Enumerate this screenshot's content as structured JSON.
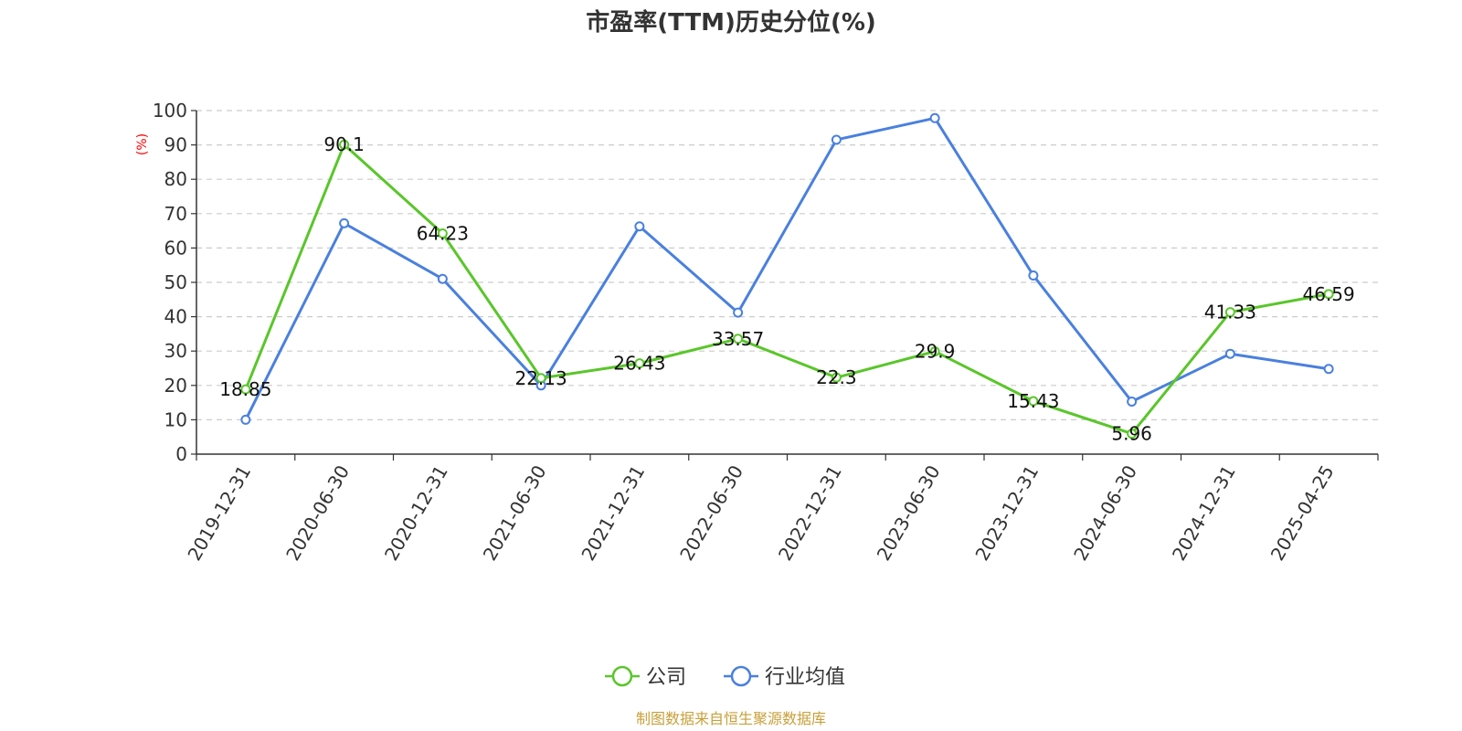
{
  "chart_data": {
    "type": "line",
    "title": "市盈率(TTM)历史分位(%)",
    "ylabel": "(%)",
    "ylim": [
      0,
      100
    ],
    "yticks": [
      0,
      10,
      20,
      30,
      40,
      50,
      60,
      70,
      80,
      90,
      100
    ],
    "grid": true,
    "legend_position": "bottom",
    "categories": [
      "2019-12-31",
      "2020-06-30",
      "2020-12-31",
      "2021-06-30",
      "2021-12-31",
      "2022-06-30",
      "2022-12-31",
      "2023-06-30",
      "2023-12-31",
      "2024-06-30",
      "2024-12-31",
      "2025-04-25"
    ],
    "series": [
      {
        "name": "公司",
        "color": "#5ac62a",
        "values": [
          18.85,
          90.1,
          64.23,
          22.13,
          26.43,
          33.57,
          22.3,
          29.9,
          15.43,
          5.96,
          41.33,
          46.59
        ],
        "data_labels": [
          "18.85",
          "90.1",
          "64.23",
          "22.13",
          "26.43",
          "33.57",
          "22.3",
          "29.9",
          "15.43",
          "5.96",
          "41.33",
          "46.59"
        ]
      },
      {
        "name": "行业均值",
        "color": "#4a80de",
        "values": [
          10,
          67.2,
          51,
          20,
          66.3,
          41.2,
          91.5,
          97.8,
          52,
          15.3,
          29.2,
          24.8
        ]
      }
    ]
  },
  "source": "制图数据来自恒生聚源数据库"
}
